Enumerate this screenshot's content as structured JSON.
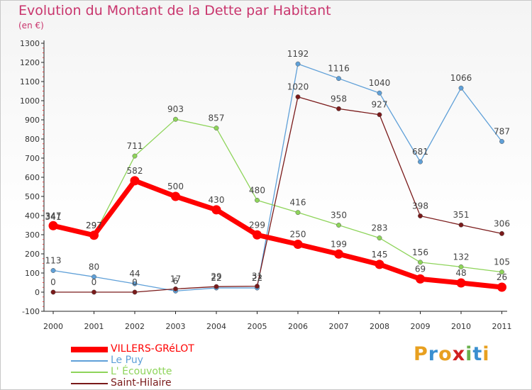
{
  "title": "Evolution du Montant de la Dette par Habitant",
  "subtitle": "(en €)",
  "logo": {
    "letters": [
      "P",
      "r",
      "o",
      "x",
      "i",
      "t",
      "i"
    ],
    "colors": [
      "#e8a020",
      "#3a8fd0",
      "#e8a020",
      "#d02020",
      "#6ab04c",
      "#3a8fd0",
      "#e8a020"
    ]
  },
  "chart_data": {
    "type": "line",
    "x": [
      "2000",
      "2001",
      "2002",
      "2003",
      "2004",
      "2005",
      "2006",
      "2007",
      "2008",
      "2009",
      "2010",
      "2011"
    ],
    "ylim": [
      -100,
      1300
    ],
    "yticks": [
      -100,
      0,
      100,
      200,
      300,
      400,
      500,
      600,
      700,
      800,
      900,
      1000,
      1100,
      1200,
      1300
    ],
    "grid": false,
    "legend_position": "bottom-left",
    "series": [
      {
        "name": "VILLERS-GRéLOT",
        "color": "#ff0000",
        "values": [
          347,
          297,
          582,
          500,
          430,
          299,
          250,
          199,
          145,
          69,
          48,
          26
        ],
        "labels": [
          "347",
          "297",
          "582",
          "500",
          "430",
          "299",
          "250",
          "199",
          "145",
          "69",
          "48",
          "26"
        ]
      },
      {
        "name": "Le Puy",
        "color": "#5fa0d8",
        "values": [
          113,
          80,
          44,
          6,
          22,
          22,
          1192,
          1116,
          1040,
          681,
          1066,
          787
        ],
        "labels": [
          "113",
          "80",
          "44",
          "6",
          "22",
          "22",
          "1192",
          "1116",
          "1040",
          "681",
          "1066",
          "787"
        ]
      },
      {
        "name": "L' Écouvotte",
        "color": "#8ed45a",
        "values": [
          341,
          297,
          711,
          903,
          857,
          480,
          416,
          350,
          283,
          156,
          132,
          105
        ],
        "labels": [
          "341",
          "297",
          "711",
          "903",
          "857",
          "480",
          "416",
          "350",
          "283",
          "156",
          "132",
          "105"
        ]
      },
      {
        "name": "Saint-Hilaire",
        "color": "#7a1a1a",
        "values": [
          0,
          0,
          0,
          17,
          29,
          31,
          1020,
          958,
          927,
          398,
          351,
          306
        ],
        "labels": [
          "0",
          "0",
          "0",
          "17",
          "29",
          "31",
          "1020",
          "958",
          "927",
          "398",
          "351",
          "306"
        ]
      }
    ]
  }
}
